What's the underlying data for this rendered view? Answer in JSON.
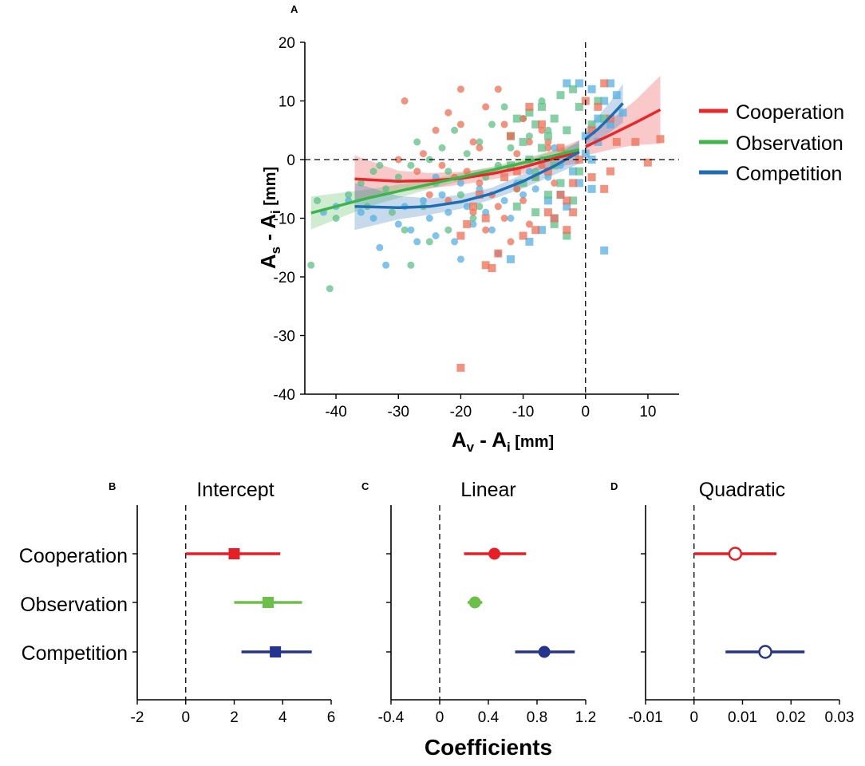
{
  "colors": {
    "cooperation": "#e8272a",
    "observation": "#3fb549",
    "competition": "#1f6db5",
    "cooperation_pt": "#ee6f55",
    "observation_pt": "#5fbf86",
    "competition_pt": "#56b0e4",
    "cooperation_dark": "#e61e25",
    "observation_dark": "#6cc04a",
    "competition_dark": "#24348f"
  },
  "chart_data": [
    {
      "panel": "A",
      "type": "scatter",
      "panel_label": "A",
      "xlabel_main": "A",
      "xlabel_sub1": "v",
      "xlabel_mid": " - A",
      "xlabel_sub2": "i",
      "xlabel_unit": " [mm]",
      "ylabel_main": "A",
      "ylabel_sub1": "s",
      "ylabel_mid": " - A",
      "ylabel_sub2": "i",
      "ylabel_unit": " [mm]",
      "xlim": [
        -45,
        15
      ],
      "ylim": [
        -40,
        20
      ],
      "xticks": [
        -40,
        -30,
        -20,
        -10,
        0,
        10
      ],
      "yticks": [
        -40,
        -30,
        -20,
        -10,
        0,
        10,
        20
      ],
      "reference_lines": {
        "x": 0,
        "y": 0
      },
      "legend": [
        "Cooperation",
        "Observation",
        "Competition"
      ],
      "legend_position": "right",
      "fits": [
        {
          "name": "Cooperation",
          "color_key": "cooperation",
          "segments": [
            {
              "x": [
                -37,
                -30,
                -25,
                -20,
                -15,
                -10,
                -5,
                -1
              ],
              "y": [
                -3.3,
                -3.7,
                -3.6,
                -3.2,
                -2.4,
                -1.3,
                0.2,
                1.3
              ],
              "band": [
                4,
                1.8,
                1.3,
                1.1,
                1.0,
                1.1,
                1.4,
                2.0
              ]
            },
            {
              "x": [
                0,
                4,
                8,
                12
              ],
              "y": [
                2.2,
                4.2,
                6.3,
                8.5
              ],
              "band": [
                1.5,
                2.5,
                3.8,
                5.8
              ]
            }
          ]
        },
        {
          "name": "Observation",
          "color_key": "observation",
          "segments": [
            {
              "x": [
                -44,
                -35,
                -25,
                -15,
                -5,
                -1
              ],
              "y": [
                -9.1,
                -6.6,
                -4.2,
                -1.8,
                0.7,
                1.7
              ],
              "band": [
                2.8,
                1.5,
                0.8,
                0.6,
                0.9,
                1.1
              ]
            }
          ]
        },
        {
          "name": "Competition",
          "color_key": "competition",
          "segments": [
            {
              "x": [
                -37,
                -30,
                -25,
                -20,
                -15,
                -10,
                -5,
                -1
              ],
              "y": [
                -8.0,
                -8.2,
                -8.0,
                -7.2,
                -5.8,
                -3.7,
                -1.1,
                1.3
              ],
              "band": [
                4,
                2.0,
                1.4,
                1.2,
                1.0,
                1.2,
                1.5,
                2.0
              ]
            },
            {
              "x": [
                0,
                2,
                4,
                6
              ],
              "y": [
                3.5,
                5.2,
                7.3,
                9.6
              ],
              "band": [
                1.8,
                2.1,
                2.6,
                3.3
              ]
            }
          ]
        }
      ],
      "points": {
        "cooperation_circles": [
          [
            -29,
            10
          ],
          [
            -24,
            5
          ],
          [
            -22,
            8
          ],
          [
            -20,
            6
          ],
          [
            -20,
            12
          ],
          [
            -18,
            3
          ],
          [
            -16,
            9
          ],
          [
            -14,
            12
          ],
          [
            -13,
            6
          ],
          [
            -12,
            4
          ],
          [
            -10,
            7
          ],
          [
            -9,
            3
          ],
          [
            -7,
            5
          ],
          [
            -6,
            2
          ],
          [
            -26,
            1
          ],
          [
            -23,
            -1
          ],
          [
            -21,
            -3
          ],
          [
            -19,
            -2
          ],
          [
            -17,
            -4
          ],
          [
            -15,
            -6
          ],
          [
            -14,
            -8
          ],
          [
            -13,
            -10
          ],
          [
            -11,
            -5
          ],
          [
            -10,
            -7
          ],
          [
            -8,
            -3
          ],
          [
            -7,
            -1
          ],
          [
            -5,
            -4
          ],
          [
            -16,
            -12
          ],
          [
            -12,
            -14
          ],
          [
            -18,
            -9
          ],
          [
            -27,
            -2
          ],
          [
            -25,
            -6
          ],
          [
            -30,
            0
          ],
          [
            -9,
            -11
          ],
          [
            -11,
            1
          ],
          [
            -6,
            3
          ],
          [
            -17,
            2
          ],
          [
            -22,
            -7
          ]
        ],
        "cooperation_squares": [
          [
            -20,
            -35.5
          ],
          [
            -16,
            -18
          ],
          [
            -15,
            -18.5
          ],
          [
            -14,
            -16
          ],
          [
            -10,
            -13
          ],
          [
            -8,
            -12
          ],
          [
            -6,
            -9
          ],
          [
            -5,
            -10
          ],
          [
            -4,
            -6
          ],
          [
            -3,
            -12
          ],
          [
            -2,
            -4
          ],
          [
            -1,
            0
          ],
          [
            1,
            5
          ],
          [
            3,
            13
          ],
          [
            4,
            7
          ],
          [
            5,
            3
          ],
          [
            8,
            3
          ],
          [
            10,
            -0.5
          ],
          [
            12,
            3.5
          ],
          [
            2,
            9
          ],
          [
            -7,
            6
          ],
          [
            -9,
            9
          ],
          [
            -12,
            4
          ],
          [
            -11,
            -2
          ],
          [
            -4,
            2
          ],
          [
            -3,
            -7
          ],
          [
            -17,
            -6
          ],
          [
            -18,
            -8
          ],
          [
            -19,
            -11
          ],
          [
            -20,
            -13
          ],
          [
            -13,
            -3
          ],
          [
            -6,
            -2
          ],
          [
            -2,
            -9
          ],
          [
            0,
            10
          ],
          [
            -16,
            -10
          ],
          [
            1,
            -3
          ],
          [
            4,
            -2
          ],
          [
            3,
            -5
          ]
        ],
        "observation_circles": [
          [
            -44,
            -18
          ],
          [
            -41,
            -22
          ],
          [
            -43,
            -7
          ],
          [
            -40,
            -10
          ],
          [
            -38,
            -6
          ],
          [
            -36,
            -4
          ],
          [
            -35,
            -8
          ],
          [
            -34,
            -2
          ],
          [
            -32,
            -5
          ],
          [
            -30,
            -3
          ],
          [
            -29,
            -12
          ],
          [
            -28,
            -1
          ],
          [
            -27,
            3
          ],
          [
            -26,
            -8
          ],
          [
            -25,
            0
          ],
          [
            -24,
            -4
          ],
          [
            -23,
            2
          ],
          [
            -22,
            -2
          ],
          [
            -21,
            5
          ],
          [
            -20,
            -6
          ],
          [
            -19,
            1
          ],
          [
            -18,
            -10
          ],
          [
            -17,
            3
          ],
          [
            -16,
            -3
          ],
          [
            -15,
            6
          ],
          [
            -14,
            -1
          ],
          [
            -13,
            9
          ],
          [
            -12,
            2
          ],
          [
            -11,
            -5
          ],
          [
            -10,
            7
          ],
          [
            -9,
            4
          ],
          [
            -8,
            -2
          ],
          [
            -7,
            10
          ],
          [
            -6,
            5
          ],
          [
            -28,
            -18
          ],
          [
            -25,
            -14
          ],
          [
            -22,
            -12
          ],
          [
            -17,
            -8
          ],
          [
            -31,
            -9
          ],
          [
            -33,
            -1
          ]
        ],
        "observation_squares": [
          [
            -12,
            4
          ],
          [
            -11,
            7
          ],
          [
            -10,
            3
          ],
          [
            -9,
            8
          ],
          [
            -8,
            6
          ],
          [
            -7,
            9
          ],
          [
            -6,
            4
          ],
          [
            -5,
            7
          ],
          [
            -4,
            11
          ],
          [
            -3,
            5
          ],
          [
            -2,
            12
          ],
          [
            -1,
            9
          ],
          [
            1,
            6
          ],
          [
            2,
            10
          ],
          [
            3,
            7
          ],
          [
            -12,
            -1
          ],
          [
            -10,
            -4
          ],
          [
            -9,
            0
          ],
          [
            -8,
            -3
          ],
          [
            -7,
            2
          ],
          [
            -6,
            -6
          ],
          [
            -5,
            -1
          ],
          [
            -4,
            -4
          ],
          [
            -3,
            1
          ],
          [
            -2,
            -7
          ],
          [
            -1,
            -2
          ],
          [
            -11,
            -8
          ],
          [
            -8,
            -9
          ],
          [
            -5,
            -11
          ],
          [
            -3,
            -13
          ]
        ],
        "competition_circles": [
          [
            -42,
            -9
          ],
          [
            -40,
            -8
          ],
          [
            -38,
            -7
          ],
          [
            -36,
            -9
          ],
          [
            -34,
            -10
          ],
          [
            -33,
            -15
          ],
          [
            -32,
            -18
          ],
          [
            -30,
            -11
          ],
          [
            -29,
            -8
          ],
          [
            -28,
            -12
          ],
          [
            -27,
            -14
          ],
          [
            -26,
            -7
          ],
          [
            -25,
            -10
          ],
          [
            -24,
            -13
          ],
          [
            -23,
            -6
          ],
          [
            -22,
            -9
          ],
          [
            -21,
            -14
          ],
          [
            -20,
            -17
          ],
          [
            -19,
            -8
          ],
          [
            -18,
            -11
          ],
          [
            -17,
            -5
          ],
          [
            -16,
            -9
          ],
          [
            -15,
            -12
          ],
          [
            -14,
            -16
          ],
          [
            -13,
            -7
          ],
          [
            -12,
            -10
          ],
          [
            -11,
            -4
          ],
          [
            -10,
            -6
          ],
          [
            -9,
            -2
          ],
          [
            -8,
            -5
          ],
          [
            -7,
            0
          ],
          [
            -6,
            -3
          ],
          [
            -5,
            2
          ],
          [
            -4,
            -1
          ],
          [
            -20,
            -4
          ],
          [
            -24,
            -3
          ]
        ],
        "competition_squares": [
          [
            -3,
            13
          ],
          [
            -1,
            13
          ],
          [
            1,
            12
          ],
          [
            4,
            13
          ],
          [
            3,
            10
          ],
          [
            5,
            11
          ],
          [
            2,
            7
          ],
          [
            4,
            6
          ],
          [
            6,
            8
          ],
          [
            0,
            4
          ],
          [
            1,
            -5
          ],
          [
            -2,
            -2
          ],
          [
            0,
            1
          ],
          [
            -3,
            -8
          ],
          [
            -5,
            -10
          ],
          [
            -7,
            -12
          ],
          [
            -12,
            -17
          ],
          [
            3,
            -15.5
          ],
          [
            -1,
            -4
          ],
          [
            2,
            3
          ],
          [
            -4,
            -6
          ],
          [
            -6,
            -7
          ],
          [
            -9,
            -14
          ],
          [
            1,
            0
          ]
        ]
      }
    },
    {
      "panel": "B",
      "type": "forest",
      "panel_label": "B",
      "title": "Intercept",
      "categories": [
        "Cooperation",
        "Observation",
        "Competition"
      ],
      "xlim": [
        -2,
        6
      ],
      "xticks": [
        -2,
        0,
        2,
        4,
        6
      ],
      "tick_labels": [
        "-2",
        "0",
        "2",
        "4",
        "6"
      ],
      "marker": "square-filled",
      "estimates": [
        2.0,
        3.4,
        3.7
      ],
      "ci_low": [
        0.0,
        2.0,
        2.3
      ],
      "ci_high": [
        3.9,
        4.8,
        5.2
      ]
    },
    {
      "panel": "C",
      "type": "forest",
      "panel_label": "C",
      "title": "Linear",
      "categories": [
        "Cooperation",
        "Observation",
        "Competition"
      ],
      "xlim": [
        -0.4,
        1.2
      ],
      "xticks": [
        -0.4,
        0,
        0.4,
        0.8,
        1.2
      ],
      "tick_labels": [
        "-0.4",
        "0",
        "0.4",
        "0.8",
        "1.2"
      ],
      "marker": "circle-filled",
      "estimates": [
        0.45,
        0.29,
        0.86
      ],
      "ci_low": [
        0.2,
        0.23,
        0.62
      ],
      "ci_high": [
        0.71,
        0.35,
        1.11
      ]
    },
    {
      "panel": "D",
      "type": "forest",
      "panel_label": "D",
      "title": "Quadratic",
      "categories": [
        "Cooperation",
        "Competition"
      ],
      "xlim": [
        -0.01,
        0.03
      ],
      "xticks": [
        -0.01,
        0,
        0.01,
        0.02,
        0.03
      ],
      "tick_labels": [
        "-0.01",
        "0",
        "0.01",
        "0.02",
        "0.03"
      ],
      "marker": "circle-open",
      "estimates": [
        0.0085,
        0.0147
      ],
      "ci_low": [
        0.0,
        0.0065
      ],
      "ci_high": [
        0.017,
        0.0228
      ]
    }
  ],
  "shared": {
    "row_labels": [
      "Cooperation",
      "Observation",
      "Competition"
    ],
    "xlabel": "Coefficients"
  }
}
